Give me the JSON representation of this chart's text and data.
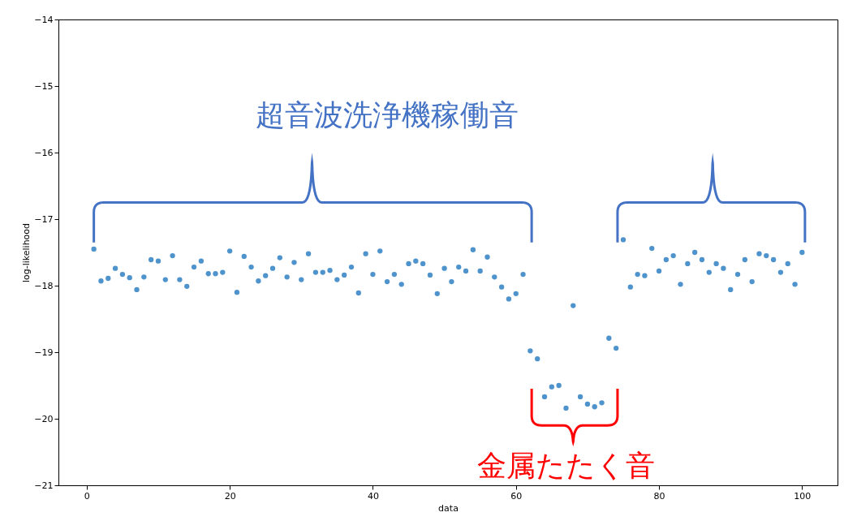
{
  "chart_data": {
    "type": "scatter",
    "xlabel": "data",
    "ylabel": "log-likelihood",
    "x": [
      1,
      2,
      3,
      4,
      5,
      6,
      7,
      8,
      9,
      10,
      11,
      12,
      13,
      14,
      15,
      16,
      17,
      18,
      19,
      20,
      21,
      22,
      23,
      24,
      25,
      26,
      27,
      28,
      29,
      30,
      31,
      32,
      33,
      34,
      35,
      36,
      37,
      38,
      39,
      40,
      41,
      42,
      43,
      44,
      45,
      46,
      47,
      48,
      49,
      50,
      51,
      52,
      53,
      54,
      55,
      56,
      57,
      58,
      59,
      60,
      61,
      62,
      63,
      64,
      65,
      66,
      67,
      68,
      69,
      70,
      71,
      72,
      73,
      74,
      75,
      76,
      77,
      78,
      79,
      80,
      81,
      82,
      83,
      84,
      85,
      86,
      87,
      88,
      89,
      90,
      91,
      92,
      93,
      94,
      95,
      96,
      97,
      98,
      99,
      100
    ],
    "series": [
      {
        "color": "#4f93cc",
        "values": [
          -17.45,
          -17.93,
          -17.89,
          -17.74,
          -17.83,
          -17.88,
          -18.06,
          -17.87,
          -17.61,
          -17.63,
          -17.91,
          -17.55,
          -17.91,
          -18.01,
          -17.72,
          -17.63,
          -17.82,
          -17.82,
          -17.8,
          -17.48,
          -18.1,
          -17.56,
          -17.72,
          -17.93,
          -17.85,
          -17.74,
          -17.58,
          -17.87,
          -17.65,
          -17.91,
          -17.52,
          -17.8,
          -17.8,
          -17.77,
          -17.91,
          -17.84,
          -17.72,
          -18.11,
          -17.52,
          -17.83,
          -17.48,
          -17.94,
          -17.83,
          -17.98,
          -17.67,
          -17.63,
          -17.67,
          -17.84,
          -18.12,
          -17.74,
          -17.94,
          -17.72,
          -17.78,
          -17.46,
          -17.78,
          -17.57,
          -17.87,
          -18.02,
          -18.2,
          -18.12,
          -17.83,
          -18.98,
          -19.1,
          -19.67,
          -19.52,
          -19.5,
          -19.84,
          -18.3,
          -19.67,
          -19.78,
          -19.82,
          -19.76,
          -18.79,
          -18.94,
          -17.31,
          -18.02,
          -17.83,
          -17.85,
          -17.44,
          -17.78,
          -17.61,
          -17.55,
          -17.98,
          -17.67,
          -17.5,
          -17.61,
          -17.8,
          -17.67,
          -17.74,
          -18.06,
          -17.83,
          -17.61,
          -17.94,
          -17.52,
          -17.55,
          -17.61,
          -17.8,
          -17.67,
          -17.98,
          -17.5
        ]
      }
    ],
    "xlim": [
      -3.95,
      104.95
    ],
    "xticks": [
      0,
      20,
      40,
      60,
      80,
      100
    ],
    "ylim": [
      -21,
      -14
    ],
    "yticks": [
      -14,
      -15,
      -16,
      -17,
      -18,
      -19,
      -20,
      -21
    ],
    "marker": "circle",
    "grid": false,
    "annotations": [
      "超音波洗浄機稼働音",
      "金属たたく音"
    ]
  }
}
